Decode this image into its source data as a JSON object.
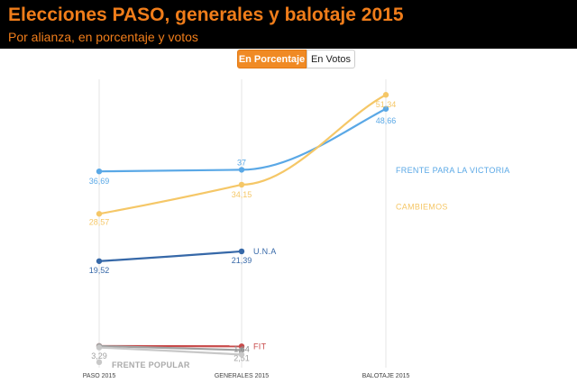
{
  "header": {
    "title": "Elecciones PASO, generales y balotaje 2015",
    "subtitle": "Por alianza, en porcentaje y votos"
  },
  "toggle": {
    "percent_label": "En Porcentaje",
    "votes_label": "En Votos",
    "active": "percent"
  },
  "colors": {
    "header_bg": "#000000",
    "title": "#f07d1a",
    "accent": "#f08a24"
  },
  "chart_data": {
    "type": "line",
    "categories": [
      "PASO 2015",
      "GENERALES 2015",
      "BALOTAJE 2015"
    ],
    "ylim": [
      0,
      56
    ],
    "grid": "vertical",
    "series": [
      {
        "name": "FRENTE PARA LA VICTORIA",
        "color": "#5aa8e6",
        "values": [
          36.69,
          37,
          48.66
        ],
        "labels": [
          "36,69",
          "37",
          "48,66"
        ]
      },
      {
        "name": "CAMBIEMOS",
        "color": "#f5c767",
        "values": [
          28.57,
          34.15,
          51.34
        ],
        "labels": [
          "28,57",
          "34,15",
          "51,34"
        ]
      },
      {
        "name": "U.N.A",
        "color": "#3668a8",
        "values": [
          19.52,
          21.39,
          null
        ],
        "labels": [
          "19,52",
          "21,39",
          ""
        ]
      },
      {
        "name": "FIT",
        "color": "#c84a4a",
        "values": [
          3.29,
          3.23,
          null
        ],
        "labels": [
          "",
          "",
          ""
        ]
      },
      {
        "name": "",
        "color": "#a0a0a0",
        "values": [
          3.29,
          2.51,
          null
        ],
        "labels": [
          "3,29",
          "2,51",
          ""
        ]
      },
      {
        "name": "",
        "color": "#c8c8c8",
        "values": [
          3.0,
          1.64,
          null
        ],
        "labels": [
          "",
          "1,64",
          ""
        ]
      },
      {
        "name": "FRENTE POPULAR",
        "color": "#c8c8c8",
        "values": [
          0.2,
          null,
          null
        ],
        "labels": [
          "",
          "",
          ""
        ]
      }
    ]
  }
}
